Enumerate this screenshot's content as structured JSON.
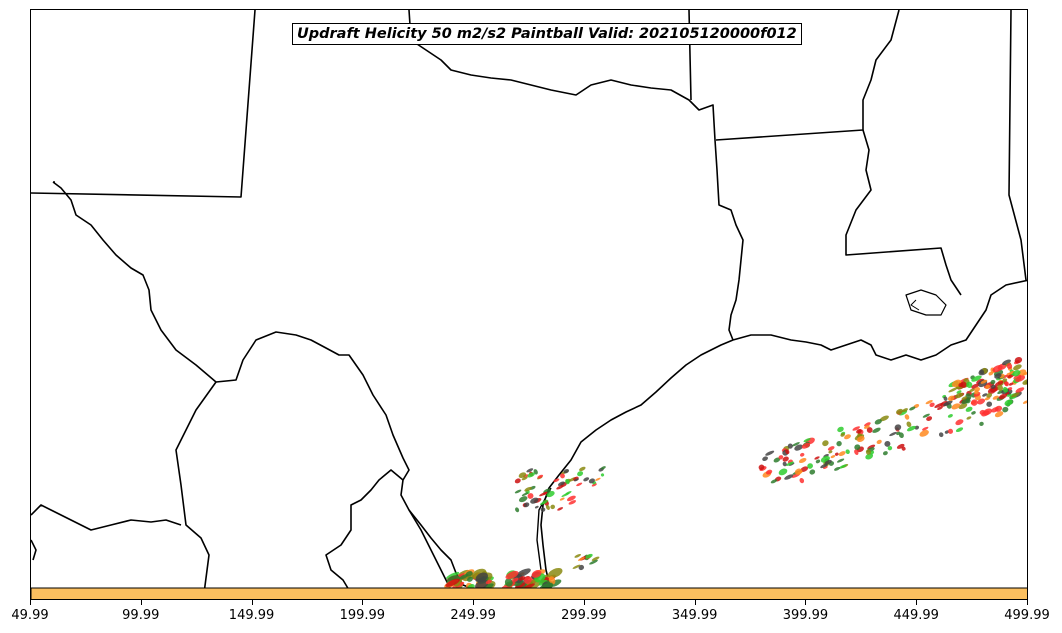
{
  "title": "Updraft Helicity 50 m2/s2 Paintball Valid: 202105120000f012",
  "colors": {
    "border": "#000000",
    "background": "#ffffff",
    "colorbar": "#fbbf5f",
    "members": [
      "#ff3030",
      "#ff8a20",
      "#2ecc2e",
      "#2e7d2e",
      "#8a8a10",
      "#444444",
      "#cc1010"
    ]
  },
  "x_axis": {
    "ticks": [
      "49.99",
      "99.99",
      "149.99",
      "199.99",
      "249.99",
      "299.99",
      "349.99",
      "399.99",
      "449.99",
      "499.99"
    ]
  }
}
